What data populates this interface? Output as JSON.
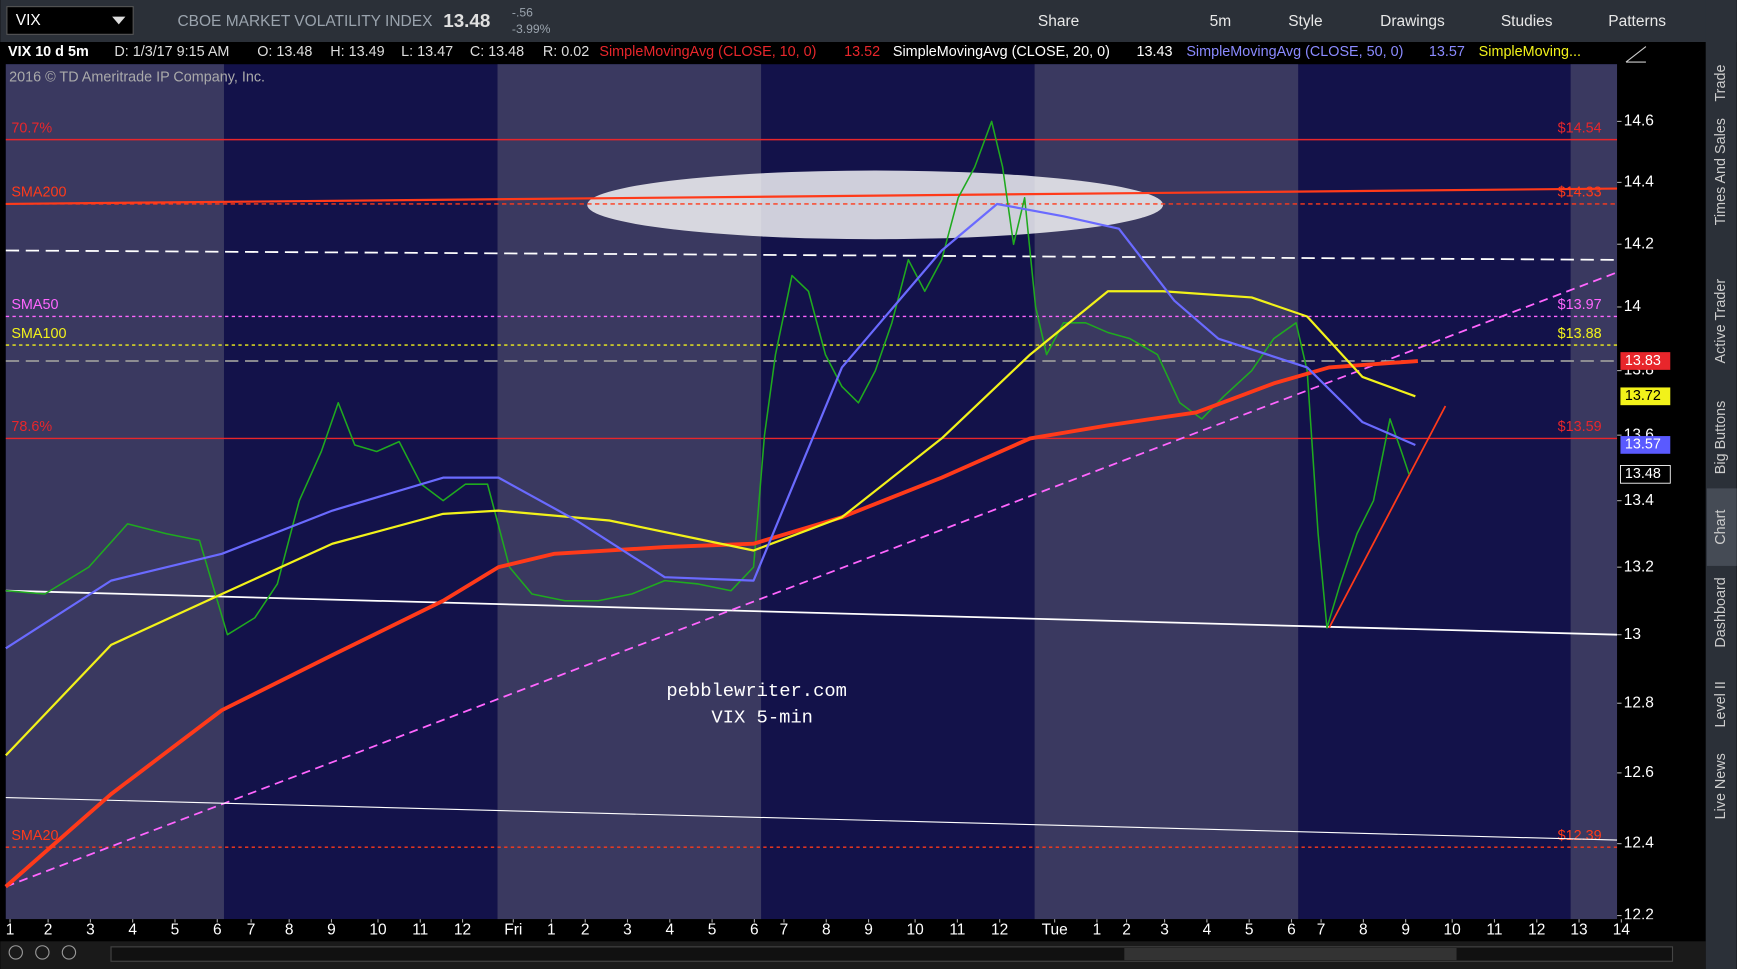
{
  "toolbar": {
    "symbol": "VIX",
    "name": "CBOE MARKET VOLATILITY INDEX",
    "last": "13.48",
    "change": "-.56",
    "change_pct": "-3.99%",
    "buttons": [
      "Share",
      "5m",
      "Style",
      "Drawings",
      "Studies",
      "Patterns"
    ]
  },
  "status": [
    {
      "text": "VIX 10 d 5m",
      "color": "#ffffff"
    },
    {
      "text": "D: 1/3/17 9:15 AM",
      "color": "#dddddd"
    },
    {
      "text": "O: 13.48",
      "color": "#dddddd"
    },
    {
      "text": "H: 13.49",
      "color": "#dddddd"
    },
    {
      "text": "L: 13.47",
      "color": "#dddddd"
    },
    {
      "text": "C: 13.48",
      "color": "#dddddd"
    },
    {
      "text": "R: 0.02",
      "color": "#dddddd"
    },
    {
      "text": "SimpleMovingAvg (CLOSE, 10, 0)",
      "color": "#e8262b"
    },
    {
      "text": "13.52",
      "color": "#e8262b"
    },
    {
      "text": "SimpleMovingAvg (CLOSE, 20, 0)",
      "color": "#ffffff"
    },
    {
      "text": "13.43",
      "color": "#ffffff"
    },
    {
      "text": "SimpleMovingAvg (CLOSE, 50, 0)",
      "color": "#8a8aff"
    },
    {
      "text": "13.57",
      "color": "#8a8aff"
    },
    {
      "text": "SimpleMoving...",
      "color": "#f2f21a"
    }
  ],
  "copyright": "2016 © TD Ameritrade IP Company, Inc.",
  "watermark": [
    "pebblewriter.com",
    "VIX 5-min"
  ],
  "side_tabs": [
    "Trade",
    "Times And Sales",
    "Active Trader",
    "Big Buttons",
    "Chart",
    "Dashboard",
    "Level II",
    "Live News"
  ],
  "chart": {
    "log_scale": true,
    "xlim": [
      -0.1,
      38.0
    ],
    "ylim": [
      12.19,
      14.79
    ],
    "yticks": [
      12.2,
      12.4,
      12.6,
      12.8,
      13,
      13.2,
      13.4,
      13.6,
      13.8,
      14,
      14.2,
      14.4,
      14.6
    ],
    "xticks": [
      {
        "value": 0,
        "label": "1"
      },
      {
        "value": 0.9,
        "label": "2"
      },
      {
        "value": 1.9,
        "label": "3"
      },
      {
        "value": 2.9,
        "label": "4"
      },
      {
        "value": 3.9,
        "label": "5"
      },
      {
        "value": 4.9,
        "label": "6"
      },
      {
        "value": 5.7,
        "label": "7"
      },
      {
        "value": 6.6,
        "label": "8"
      },
      {
        "value": 7.6,
        "label": "9"
      },
      {
        "value": 8.7,
        "label": "10"
      },
      {
        "value": 9.7,
        "label": "11"
      },
      {
        "value": 10.7,
        "label": "12"
      },
      {
        "value": 11.9,
        "label": "Fri"
      },
      {
        "value": 12.8,
        "label": "1"
      },
      {
        "value": 13.6,
        "label": "2"
      },
      {
        "value": 14.6,
        "label": "3"
      },
      {
        "value": 15.6,
        "label": "4"
      },
      {
        "value": 16.6,
        "label": "5"
      },
      {
        "value": 17.6,
        "label": "6"
      },
      {
        "value": 18.3,
        "label": "7"
      },
      {
        "value": 19.3,
        "label": "8"
      },
      {
        "value": 20.3,
        "label": "9"
      },
      {
        "value": 21.4,
        "label": "10"
      },
      {
        "value": 22.4,
        "label": "11"
      },
      {
        "value": 23.4,
        "label": "12"
      },
      {
        "value": 24.7,
        "label": "Tue"
      },
      {
        "value": 25.7,
        "label": "1"
      },
      {
        "value": 26.4,
        "label": "2"
      },
      {
        "value": 27.3,
        "label": "3"
      },
      {
        "value": 28.3,
        "label": "4"
      },
      {
        "value": 29.3,
        "label": "5"
      },
      {
        "value": 30.3,
        "label": "6"
      },
      {
        "value": 31.0,
        "label": "7"
      },
      {
        "value": 32.0,
        "label": "8"
      },
      {
        "value": 33.0,
        "label": "9"
      },
      {
        "value": 34.1,
        "label": "10"
      },
      {
        "value": 35.1,
        "label": "11"
      },
      {
        "value": 36.1,
        "label": "12"
      },
      {
        "value": 37.1,
        "label": "13"
      },
      {
        "value": 38.1,
        "label": "14"
      }
    ],
    "levels": [
      {
        "label": "70.7%",
        "value": 14.54,
        "price_label": "$14.54",
        "color": "#e8262b",
        "dash": "none"
      },
      {
        "label": "SMA200",
        "value": 14.33,
        "price_label": "$14.33",
        "color": "#ff3a1a",
        "dash": "4 3"
      },
      {
        "label": "SMA50",
        "value": 13.97,
        "price_label": "$13.97",
        "color": "#ff66ff",
        "dash": "3 3"
      },
      {
        "label": "SMA100",
        "value": 13.88,
        "price_label": "$13.88",
        "color": "#f2f21a",
        "dash": "3 3"
      },
      {
        "label": "78.6%",
        "value": 13.59,
        "price_label": "$13.59",
        "color": "#e8262b",
        "dash": "none"
      },
      {
        "label": "SMA20",
        "value": 12.39,
        "price_label": "$12.39",
        "color": "#ff3a1a",
        "dash": "3 3"
      }
    ],
    "price_tags": [
      {
        "value": 13.83,
        "color": "#e8262b",
        "text_color": "#ffffff"
      },
      {
        "value": 13.72,
        "color": "#f2f21a",
        "text_color": "#000000"
      },
      {
        "value": 13.57,
        "color": "#5a5aff",
        "text_color": "#ffffff"
      },
      {
        "value": 13.48,
        "color": "#000000",
        "text_color": "#ffffff"
      }
    ],
    "drawings": [
      {
        "x": [
          -0.1,
          38.0
        ],
        "y": [
          13.13,
          13.0
        ],
        "color": "#ffffff",
        "dash": "none",
        "width": 1.6
      },
      {
        "x": [
          -0.1,
          38.0
        ],
        "y": [
          12.28,
          14.11
        ],
        "color": "#ff66ff",
        "dash": "8 5",
        "width": 1.6
      },
      {
        "x": [
          -0.1,
          38.0
        ],
        "y": [
          12.53,
          12.41
        ],
        "color": "#ffffff",
        "dash": "none",
        "width": 1
      },
      {
        "x": [
          -0.1,
          38.0
        ],
        "y": [
          14.18,
          14.15
        ],
        "color": "#ffffff",
        "dash": "12 6",
        "width": 1.6
      },
      {
        "x": [
          -0.1,
          38.0
        ],
        "y": [
          13.83,
          13.83
        ],
        "color": "#999999",
        "dash": "12 6",
        "width": 1.6
      },
      {
        "x": [
          -0.1,
          38.0
        ],
        "y": [
          14.33,
          14.38
        ],
        "color": "#ff3a1a",
        "dash": "none",
        "width": 2
      },
      {
        "x": [
          31.19,
          33.94
        ],
        "y": [
          13.02,
          13.69
        ],
        "color": "#ff3a1a",
        "dash": "none",
        "width": 1.6
      }
    ],
    "series": [
      {
        "color": "#1faa1f",
        "width": 1.4,
        "x": [
          -0.1,
          0.82,
          1.86,
          2.78,
          3.7,
          4.48,
          5.14,
          5.79,
          6.32,
          6.84,
          7.36,
          7.76,
          8.15,
          8.67,
          9.2,
          9.72,
          10.24,
          10.77,
          11.29,
          11.81,
          12.34,
          13.12,
          13.91,
          14.7,
          15.48,
          16.27,
          17.05,
          17.58,
          17.84,
          18.1,
          18.49,
          18.88,
          19.28,
          19.67,
          20.06,
          20.46,
          20.85,
          21.24,
          21.63,
          22.03,
          22.42,
          22.81,
          23.21,
          23.47,
          23.73,
          23.99,
          24.25,
          24.51,
          24.91,
          25.43,
          25.95,
          26.48,
          27.13,
          27.66,
          28.18,
          28.7,
          29.36,
          29.88,
          30.41,
          30.67,
          30.93,
          31.14,
          31.45,
          31.85,
          32.24,
          32.63,
          32.9,
          33.08
        ],
        "values": [
          13.13,
          13.12,
          13.2,
          13.33,
          13.3,
          13.28,
          13.0,
          13.05,
          13.15,
          13.4,
          13.55,
          13.7,
          13.57,
          13.55,
          13.58,
          13.45,
          13.4,
          13.45,
          13.45,
          13.2,
          13.12,
          13.1,
          13.1,
          13.12,
          13.16,
          13.15,
          13.13,
          13.2,
          13.6,
          13.85,
          14.1,
          14.05,
          13.85,
          13.75,
          13.7,
          13.8,
          13.95,
          14.15,
          14.05,
          14.15,
          14.35,
          14.45,
          14.6,
          14.45,
          14.2,
          14.35,
          14.0,
          13.85,
          13.95,
          13.95,
          13.92,
          13.9,
          13.85,
          13.7,
          13.65,
          13.72,
          13.8,
          13.9,
          13.95,
          13.8,
          13.3,
          13.02,
          13.15,
          13.3,
          13.4,
          13.65,
          13.55,
          13.48
        ]
      },
      {
        "color": "#ff3a1a",
        "width": 3.5,
        "x": [
          -0.1,
          2.39,
          5.01,
          7.62,
          10.24,
          11.55,
          12.86,
          15.48,
          17.58,
          19.67,
          22.03,
          24.12,
          25.96,
          28.05,
          29.88,
          31.19,
          33.29
        ],
        "values": [
          12.28,
          12.54,
          12.78,
          12.94,
          13.1,
          13.2,
          13.24,
          13.26,
          13.27,
          13.35,
          13.47,
          13.59,
          13.63,
          13.67,
          13.76,
          13.81,
          13.83
        ]
      },
      {
        "color": "#f2f21a",
        "width": 2,
        "x": [
          -0.1,
          2.39,
          5.01,
          7.62,
          10.24,
          11.55,
          14.17,
          17.58,
          19.67,
          22.03,
          24.12,
          25.96,
          27.26,
          29.36,
          30.67,
          31.98,
          33.23
        ],
        "values": [
          12.65,
          12.97,
          13.12,
          13.27,
          13.36,
          13.37,
          13.34,
          13.25,
          13.35,
          13.59,
          13.85,
          14.05,
          14.05,
          14.03,
          13.97,
          13.78,
          13.72
        ]
      },
      {
        "color": "#6a6aff",
        "width": 2,
        "x": [
          -0.1,
          2.39,
          5.01,
          7.62,
          10.24,
          11.55,
          13.39,
          15.48,
          17.58,
          19.67,
          22.03,
          23.34,
          24.91,
          26.22,
          27.53,
          28.57,
          30.67,
          31.98,
          33.23
        ],
        "values": [
          12.96,
          13.16,
          13.24,
          13.37,
          13.47,
          13.47,
          13.34,
          13.17,
          13.16,
          13.81,
          14.18,
          14.33,
          14.29,
          14.25,
          14.02,
          13.9,
          13.81,
          13.64,
          13.57
        ]
      }
    ]
  }
}
